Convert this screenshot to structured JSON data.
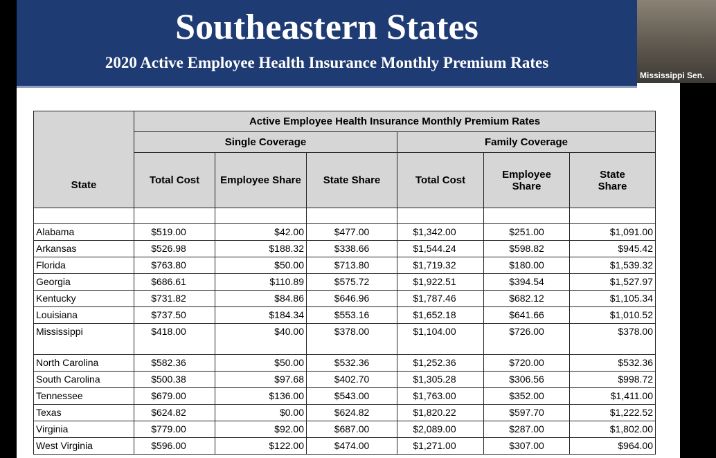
{
  "header": {
    "title": "Southeastern States",
    "subtitle": "2020 Active Employee Health Insurance Monthly Premium Rates"
  },
  "video": {
    "label": "Mississippi Sen."
  },
  "table": {
    "group_title": "Active Employee Health Insurance Monthly Premium Rates",
    "state_header": "State",
    "groups": [
      "Single Coverage",
      "Family Coverage"
    ],
    "columns": [
      "Total Cost",
      "Employee Share",
      "State Share",
      "Total Cost",
      "Employee Share",
      "State Share"
    ],
    "rows": [
      [
        "Alabama",
        "$519.00",
        "$42.00",
        "$477.00",
        "$1,342.00",
        "$251.00",
        "$1,091.00"
      ],
      [
        "Arkansas",
        "$526.98",
        "$188.32",
        "$338.66",
        "$1,544.24",
        "$598.82",
        "$945.42"
      ],
      [
        "Florida",
        "$763.80",
        "$50.00",
        "$713.80",
        "$1,719.32",
        "$180.00",
        "$1,539.32"
      ],
      [
        "Georgia",
        "$686.61",
        "$110.89",
        "$575.72",
        "$1,922.51",
        "$394.54",
        "$1,527.97"
      ],
      [
        "Kentucky",
        "$731.82",
        "$84.86",
        "$646.96",
        "$1,787.46",
        "$682.12",
        "$1,105.34"
      ],
      [
        "Louisiana",
        "$737.50",
        "$184.34",
        "$553.16",
        "$1,652.18",
        "$641.66",
        "$1,010.52"
      ],
      [
        "Mississippi",
        "$418.00",
        "$40.00",
        "$378.00",
        "$1,104.00",
        "$726.00",
        "$378.00"
      ],
      [
        "North Carolina",
        "$582.36",
        "$50.00",
        "$532.36",
        "$1,252.36",
        "$720.00",
        "$532.36"
      ],
      [
        "South Carolina",
        "$500.38",
        "$97.68",
        "$402.70",
        "$1,305.28",
        "$306.56",
        "$998.72"
      ],
      [
        "Tennessee",
        "$679.00",
        "$136.00",
        "$543.00",
        "$1,763.00",
        "$352.00",
        "$1,411.00"
      ],
      [
        "Texas",
        "$624.82",
        "$0.00",
        "$624.82",
        "$1,820.22",
        "$597.70",
        "$1,222.52"
      ],
      [
        "Virginia",
        "$779.00",
        "$92.00",
        "$687.00",
        "$2,089.00",
        "$287.00",
        "$1,802.00"
      ],
      [
        "West Virginia",
        "$596.00",
        "$122.00",
        "$474.00",
        "$1,271.00",
        "$307.00",
        "$964.00"
      ]
    ]
  }
}
